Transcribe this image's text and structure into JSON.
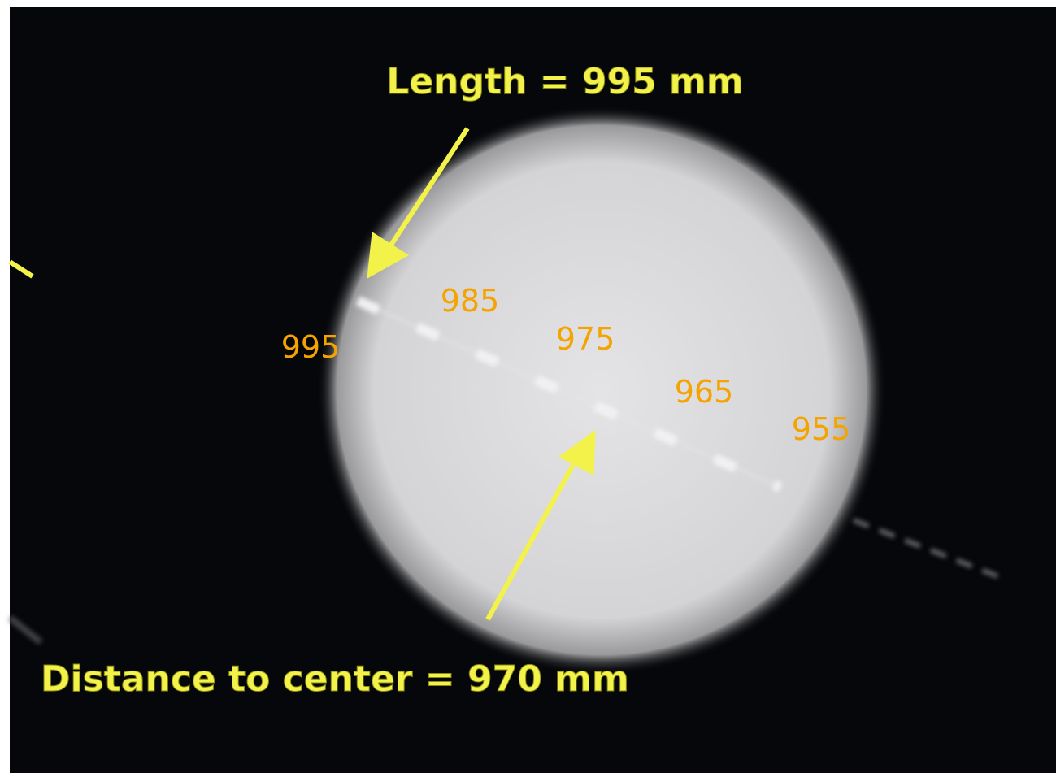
{
  "annotations": {
    "top": "Length = 995 mm",
    "bottom": "Distance to center = 970 mm"
  },
  "markers": [
    "995",
    "985",
    "975",
    "965",
    "955"
  ]
}
